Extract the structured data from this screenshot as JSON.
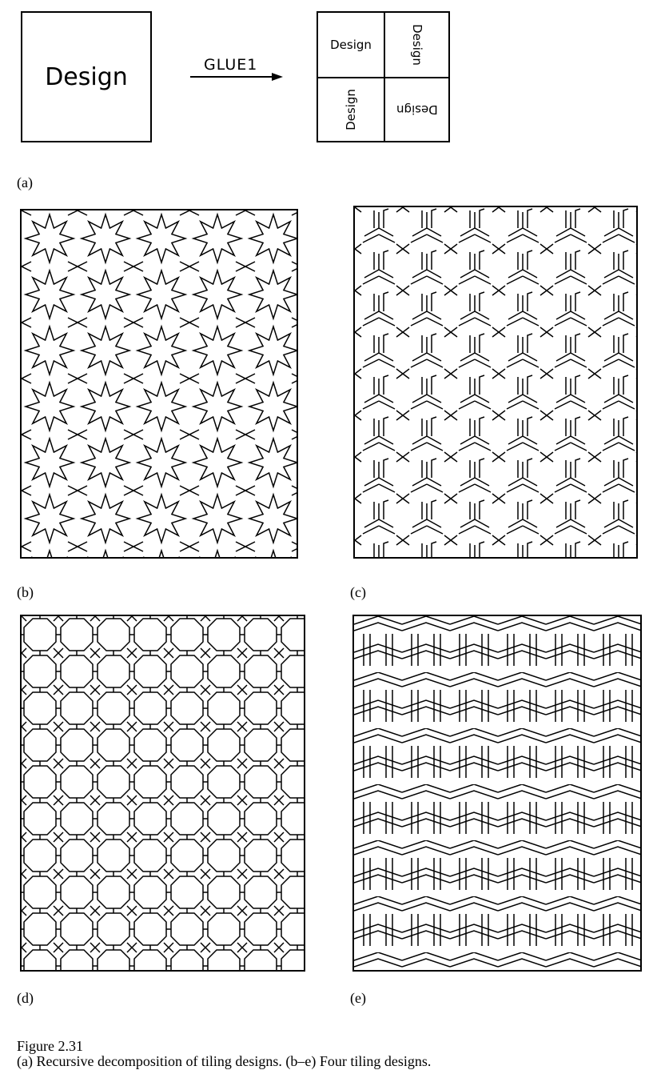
{
  "panel_a": {
    "big_box_text": "Design",
    "arrow_label": "GLUE1",
    "quad_labels": [
      "Design",
      "Design",
      "Design",
      "Design"
    ],
    "label": "(a)"
  },
  "panels": [
    {
      "label": "(b)",
      "pattern": "eight-point-star-tiling"
    },
    {
      "label": "(c)",
      "pattern": "three-arm-interlace-tiling"
    },
    {
      "label": "(d)",
      "pattern": "octagon-square-tiling"
    },
    {
      "label": "(e)",
      "pattern": "hexagonal-band-interlace-tiling"
    }
  ],
  "caption": {
    "figure_label": "Figure 2.31",
    "text": "(a) Recursive decomposition of tiling designs. (b–e) Four tiling designs."
  }
}
